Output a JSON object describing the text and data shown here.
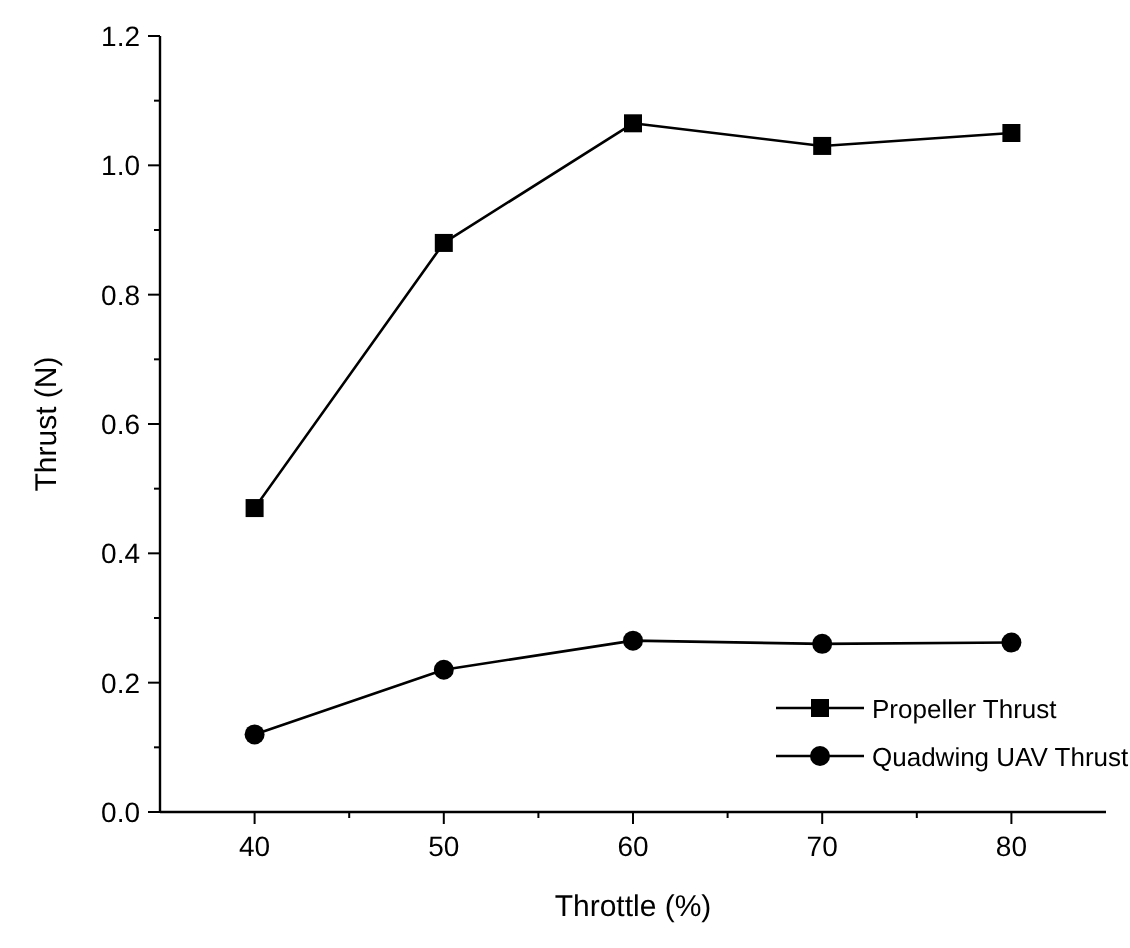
{
  "chart_data": {
    "type": "line",
    "xlabel": "Throttle (%)",
    "ylabel": "Thrust (N)",
    "x": [
      40,
      50,
      60,
      70,
      80
    ],
    "series": [
      {
        "name": "Propeller Thrust",
        "color": "#000000",
        "marker": "square",
        "values": [
          0.47,
          0.88,
          1.065,
          1.03,
          1.05
        ]
      },
      {
        "name": "Quadwing UAV Thrust",
        "color": "#000000",
        "marker": "circle",
        "values": [
          0.12,
          0.22,
          0.265,
          0.26,
          0.262
        ]
      }
    ],
    "xlim": [
      35,
      85
    ],
    "xticks": [
      40,
      50,
      60,
      70,
      80
    ],
    "ylim": [
      0,
      1.2
    ],
    "yticks": [
      {
        "value": 0,
        "label": "0.0"
      },
      0.2,
      0.4,
      0.6,
      0.8,
      {
        "value": 1,
        "label": "1.0"
      },
      1.2
    ],
    "legend": "bottom right",
    "grid": false,
    "line_style": "solid"
  }
}
